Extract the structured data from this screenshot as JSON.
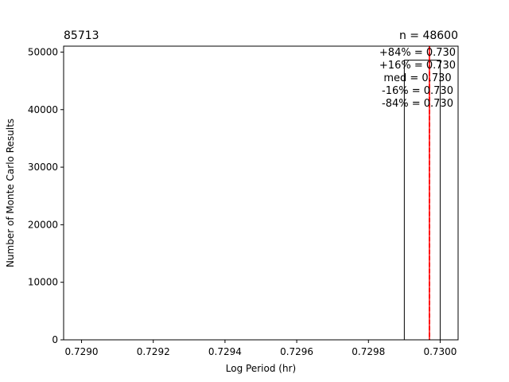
{
  "chart_data": {
    "type": "bar",
    "title_left": "85713",
    "title_right": "n = 48600",
    "xlabel": "Log Period (hr)",
    "ylabel": "Number of Monte Carlo Results",
    "xlim": [
      0.72895,
      0.73005
    ],
    "ylim": [
      0,
      51030
    ],
    "x_ticks": [
      0.729,
      0.7292,
      0.7294,
      0.7296,
      0.7298,
      0.73
    ],
    "x_tick_labels": [
      "0.7290",
      "0.7292",
      "0.7294",
      "0.7296",
      "0.7298",
      "0.7300"
    ],
    "y_ticks": [
      0,
      10000,
      20000,
      30000,
      40000,
      50000
    ],
    "y_tick_labels": [
      "0",
      "10000",
      "20000",
      "30000",
      "40000",
      "50000"
    ],
    "bars": [
      {
        "x0": 0.7299,
        "x1": 0.73,
        "count": 48600
      },
      {
        "x0": 0.73,
        "x1": 0.7301,
        "count": 0
      }
    ],
    "percentile_lines": [
      {
        "label": "+84%",
        "x": 0.72997,
        "color": "#ff0000",
        "style": "dashed"
      },
      {
        "label": "+16%",
        "x": 0.72997,
        "color": "#ff0000",
        "style": "dashed"
      },
      {
        "label": "med",
        "x": 0.72997,
        "color": "#ff0000",
        "style": "solid"
      },
      {
        "label": "-16%",
        "x": 0.72997,
        "color": "#ff0000",
        "style": "dashed"
      },
      {
        "label": "-84%",
        "x": 0.72997,
        "color": "#ff0000",
        "style": "dashed"
      }
    ],
    "annotations": [
      "+84% = 0.730",
      "+16% = 0.730",
      "med = 0.730",
      "-16% = 0.730",
      "-84% = 0.730"
    ]
  }
}
